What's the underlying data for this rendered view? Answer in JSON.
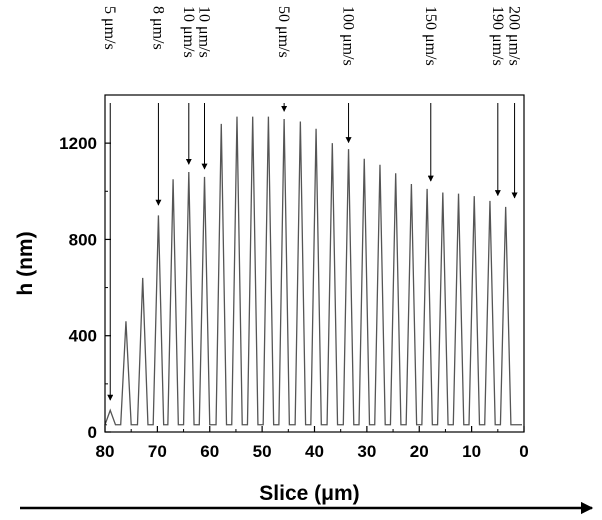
{
  "chart_data": {
    "type": "line",
    "xlabel": "Slice (μm)",
    "ylabel": "h (nm)",
    "xlim": [
      80,
      0
    ],
    "ylim": [
      0,
      1400
    ],
    "x_ticks": [
      80,
      70,
      60,
      50,
      40,
      30,
      20,
      10,
      0
    ],
    "y_ticks": [
      0,
      400,
      800,
      1200
    ],
    "baseline": 30,
    "series": [
      {
        "color": "#555555",
        "peaks": [
          {
            "x": 79.0,
            "h": 90
          },
          {
            "x": 76.0,
            "h": 460
          },
          {
            "x": 72.8,
            "h": 640
          },
          {
            "x": 69.8,
            "h": 900
          },
          {
            "x": 67.0,
            "h": 1050
          },
          {
            "x": 64.0,
            "h": 1080
          },
          {
            "x": 61.0,
            "h": 1060
          },
          {
            "x": 57.8,
            "h": 1280
          },
          {
            "x": 54.8,
            "h": 1310
          },
          {
            "x": 51.8,
            "h": 1310
          },
          {
            "x": 48.8,
            "h": 1310
          },
          {
            "x": 45.8,
            "h": 1300
          },
          {
            "x": 42.7,
            "h": 1290
          },
          {
            "x": 39.7,
            "h": 1260
          },
          {
            "x": 36.6,
            "h": 1200
          },
          {
            "x": 33.5,
            "h": 1175
          },
          {
            "x": 30.5,
            "h": 1135
          },
          {
            "x": 27.5,
            "h": 1110
          },
          {
            "x": 24.5,
            "h": 1075
          },
          {
            "x": 21.5,
            "h": 1030
          },
          {
            "x": 18.5,
            "h": 1010
          },
          {
            "x": 15.5,
            "h": 995
          },
          {
            "x": 12.5,
            "h": 990
          },
          {
            "x": 9.5,
            "h": 980
          },
          {
            "x": 6.5,
            "h": 960
          },
          {
            "x": 3.5,
            "h": 935
          }
        ]
      }
    ],
    "annotations": [
      {
        "text": "5 μm/s",
        "x": 79.0,
        "h": 120
      },
      {
        "text": "8 μm/s",
        "x": 69.8,
        "h": 930
      },
      {
        "text": "10 μm/s",
        "x": 64.0,
        "h": 1100
      },
      {
        "text": "10 μm/s",
        "x": 61.0,
        "h": 1080
      },
      {
        "text": "50 μm/s",
        "x": 45.8,
        "h": 1320
      },
      {
        "text": "100 μm/s",
        "x": 33.5,
        "h": 1190
      },
      {
        "text": "150 μm/s",
        "x": 17.8,
        "h": 1030
      },
      {
        "text": "190 μm/s",
        "x": 5.0,
        "h": 970
      },
      {
        "text": "200 μm/s",
        "x": 1.8,
        "h": 960
      }
    ]
  }
}
